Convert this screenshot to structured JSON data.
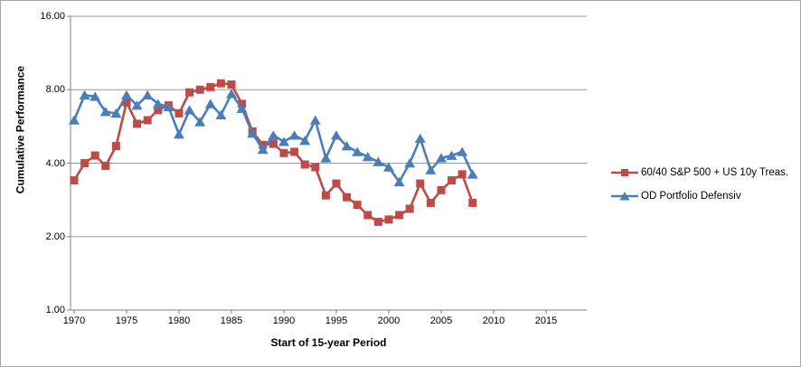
{
  "chart_data": {
    "type": "line",
    "title": "",
    "xlabel": "Start of 15-year Period",
    "ylabel": "Cumulative Performance",
    "y_scale": "log2",
    "ylim": [
      1,
      16
    ],
    "grid": "horizontal",
    "legend_position": "right",
    "x": [
      1970,
      1971,
      1972,
      1973,
      1974,
      1975,
      1976,
      1977,
      1978,
      1979,
      1980,
      1981,
      1982,
      1983,
      1984,
      1985,
      1986,
      1987,
      1988,
      1989,
      1990,
      1991,
      1992,
      1993,
      1994,
      1995,
      1996,
      1997,
      1998,
      1999,
      2000,
      2001,
      2002,
      2003,
      2004,
      2005,
      2006,
      2007,
      2008
    ],
    "series": [
      {
        "name": "60/40 S&P 500 + US 10y Treas.",
        "color": "#be4b48",
        "marker": "square",
        "values": [
          3.4,
          4.0,
          4.3,
          3.9,
          4.7,
          7.1,
          5.8,
          6.0,
          6.6,
          6.9,
          6.4,
          7.8,
          8.0,
          8.2,
          8.5,
          8.4,
          7.0,
          5.4,
          4.75,
          4.8,
          4.4,
          4.45,
          3.95,
          3.85,
          2.95,
          3.3,
          2.9,
          2.7,
          2.45,
          2.3,
          2.35,
          2.45,
          2.6,
          3.3,
          2.75,
          3.1,
          3.4,
          3.6,
          2.75
        ]
      },
      {
        "name": "OD Portfolio Defensiv",
        "color": "#4a7ebb",
        "marker": "triangle",
        "values": [
          6.0,
          7.6,
          7.5,
          6.5,
          6.4,
          7.6,
          6.9,
          7.6,
          7.0,
          6.8,
          5.25,
          6.6,
          5.9,
          7.0,
          6.3,
          7.7,
          6.7,
          5.3,
          4.55,
          5.2,
          4.9,
          5.2,
          4.95,
          6.0,
          4.2,
          5.2,
          4.7,
          4.45,
          4.25,
          4.05,
          3.85,
          3.35,
          4.0,
          5.05,
          3.75,
          4.2,
          4.3,
          4.45,
          3.6
        ]
      }
    ],
    "x_ticks": [
      1970,
      1975,
      1980,
      1985,
      1990,
      1995,
      2000,
      2005,
      2010,
      2015
    ],
    "x_tick_labels": [
      "1970",
      "1975",
      "1980",
      "1985",
      "1990",
      "1995",
      "2000",
      "2005",
      "2010",
      "2015"
    ],
    "y_ticks": [
      1,
      2,
      4,
      8,
      16
    ],
    "y_tick_labels": [
      "1.00",
      "2.00",
      "4.00",
      "8.00",
      "16.00"
    ]
  },
  "colors": {
    "gridline": "#999999",
    "axis": "#808080",
    "frame_border": "#a6a6a6",
    "background": "#ffffff",
    "text": "#000000"
  }
}
